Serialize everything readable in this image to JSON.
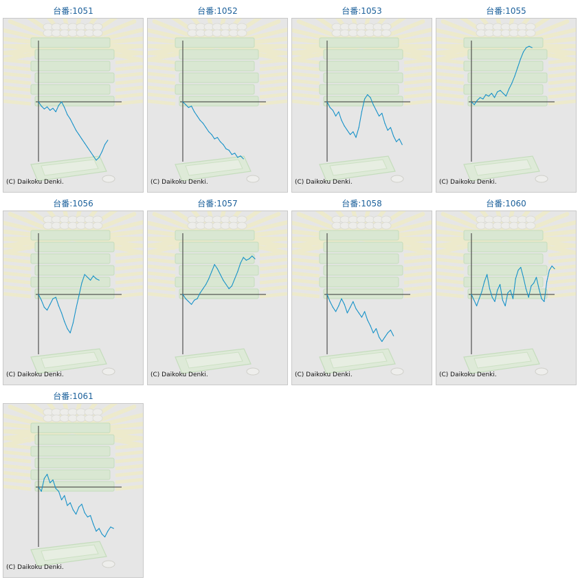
{
  "colors": {
    "title": "#1a5f9a",
    "line": "#1591c8",
    "axis": "#333333",
    "background": "#e6e6e6",
    "border": "#c8c8c8"
  },
  "copyright": "(C) Daikoku Denki.",
  "chart_data": [
    {
      "type": "line",
      "title": "台番:1051",
      "axes": "origin-cross",
      "ylim": [
        -4200,
        4000
      ],
      "values": [
        0,
        -300,
        -500,
        -350,
        -600,
        -450,
        -700,
        -250,
        0,
        -400,
        -900,
        -1200,
        -1600,
        -2000,
        -2300,
        -2600,
        -2900,
        -3200,
        -3500,
        -3800,
        -4100,
        -3900,
        -3500,
        -3000,
        -2700
      ]
    },
    {
      "type": "line",
      "title": "台番:1052",
      "axes": "origin-cross",
      "ylim": [
        -4200,
        4000
      ],
      "values": [
        0,
        -200,
        -400,
        -300,
        -700,
        -1000,
        -1300,
        -1500,
        -1800,
        -2100,
        -2300,
        -2600,
        -2500,
        -2800,
        -3000,
        -3300,
        -3400,
        -3700,
        -3600,
        -3900,
        -3800,
        -4000
      ]
    },
    {
      "type": "line",
      "title": "台番:1053",
      "axes": "origin-cross",
      "ylim": [
        -4200,
        4000
      ],
      "values": [
        0,
        -400,
        -600,
        -1000,
        -700,
        -1300,
        -1700,
        -2000,
        -2300,
        -2100,
        -2500,
        -1800,
        -700,
        200,
        500,
        300,
        -200,
        -600,
        -1000,
        -800,
        -1500,
        -2000,
        -1800,
        -2400,
        -2800,
        -2600,
        -3000
      ]
    },
    {
      "type": "line",
      "title": "台番:1055",
      "axes": "origin-cross",
      "ylim": [
        -4200,
        4000
      ],
      "values": [
        0,
        -200,
        100,
        300,
        200,
        500,
        400,
        600,
        300,
        700,
        800,
        600,
        400,
        900,
        1300,
        1800,
        2400,
        3000,
        3500,
        3800,
        3900,
        3800
      ]
    },
    {
      "type": "line",
      "title": "台番:1056",
      "axes": "origin-cross",
      "ylim": [
        -4200,
        4000
      ],
      "values": [
        0,
        -400,
        -900,
        -1100,
        -700,
        -300,
        -200,
        -800,
        -1300,
        -1900,
        -2400,
        -2700,
        -2000,
        -1000,
        -100,
        800,
        1400,
        1200,
        1000,
        1300,
        1100,
        1000
      ]
    },
    {
      "type": "line",
      "title": "台番:1057",
      "axes": "origin-cross",
      "ylim": [
        -4200,
        4000
      ],
      "values": [
        0,
        -300,
        -500,
        -700,
        -400,
        -300,
        100,
        400,
        700,
        1100,
        1600,
        2100,
        1800,
        1400,
        1000,
        700,
        400,
        600,
        1100,
        1600,
        2200,
        2600,
        2400,
        2500,
        2700,
        2500
      ]
    },
    {
      "type": "line",
      "title": "台番:1058",
      "axes": "origin-cross",
      "ylim": [
        -4200,
        4000
      ],
      "values": [
        0,
        -500,
        -900,
        -1200,
        -800,
        -300,
        -700,
        -1300,
        -900,
        -500,
        -1000,
        -1300,
        -1600,
        -1200,
        -1800,
        -2200,
        -2700,
        -2400,
        -3000,
        -3300,
        -3000,
        -2700,
        -2500,
        -2900
      ]
    },
    {
      "type": "line",
      "title": "台番:1060",
      "axes": "origin-cross",
      "ylim": [
        -4200,
        4000
      ],
      "values": [
        0,
        -400,
        -800,
        -300,
        200,
        900,
        1400,
        400,
        -200,
        -500,
        300,
        700,
        -400,
        -800,
        100,
        300,
        -300,
        1100,
        1700,
        1900,
        1200,
        400,
        -200,
        600,
        800,
        1200,
        400,
        -300,
        -500,
        900,
        1700,
        2000,
        1800
      ]
    },
    {
      "type": "line",
      "title": "台番:1061",
      "axes": "origin-cross",
      "ylim": [
        -4200,
        4000
      ],
      "values": [
        0,
        -300,
        600,
        900,
        300,
        500,
        -100,
        -300,
        -900,
        -600,
        -1300,
        -1100,
        -1600,
        -1900,
        -1400,
        -1200,
        -1800,
        -2100,
        -2000,
        -2600,
        -3100,
        -2900,
        -3300,
        -3500,
        -3100,
        -2800,
        -2900
      ]
    }
  ]
}
